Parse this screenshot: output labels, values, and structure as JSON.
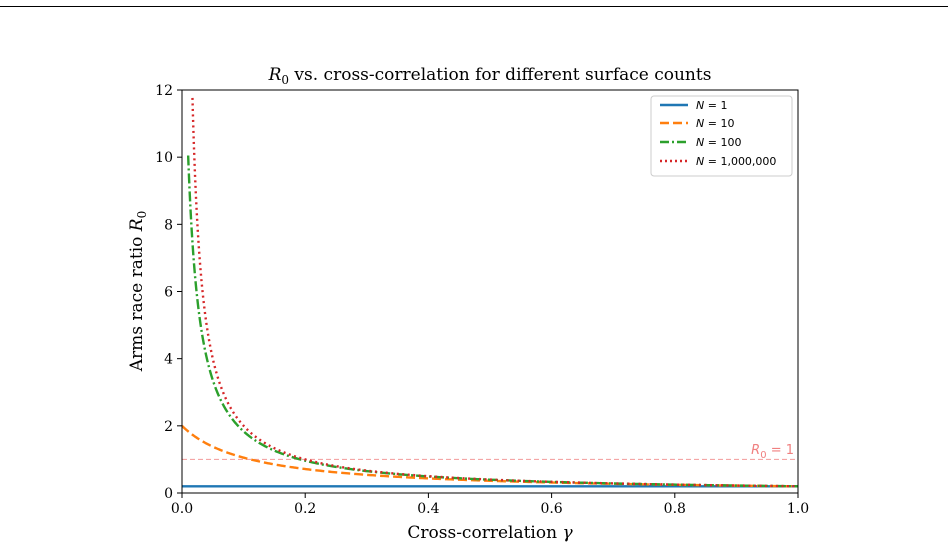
{
  "chart_data": {
    "type": "line",
    "title_var": "R",
    "title_sub": "0",
    "title_rest": " vs. cross-correlation for different surface counts",
    "xlabel": "Cross-correlation ",
    "xlabel_var": "γ",
    "ylabel": "Arms race ratio ",
    "ylabel_var": "R",
    "ylabel_sub": "0",
    "xlim": [
      0.0,
      1.0
    ],
    "ylim": [
      0,
      12
    ],
    "xticks": [
      "0.0",
      "0.2",
      "0.4",
      "0.6",
      "0.8",
      "1.0"
    ],
    "yticks": [
      "0",
      "2",
      "4",
      "6",
      "8",
      "10",
      "12"
    ],
    "grid": false,
    "legend_position": "top-right",
    "reference_line": {
      "y": 1,
      "label_var": "R",
      "label_sub": "0",
      "label_rest": " = 1",
      "color": "#f08080"
    },
    "series": [
      {
        "name_var": "N",
        "name_rest": " = 1",
        "N": 1,
        "color": "#1f77b4",
        "dash": "solid",
        "x": [
          0.0,
          0.2,
          0.4,
          0.6,
          0.8,
          1.0
        ],
        "values": [
          0.2,
          0.2,
          0.2,
          0.2,
          0.2,
          0.2
        ]
      },
      {
        "name_var": "N",
        "name_rest": " = 10",
        "N": 10,
        "color": "#ff7f0e",
        "dash": "dashed",
        "x": [
          0.0,
          0.1,
          0.2,
          0.3,
          0.4,
          0.6,
          0.8,
          1.0
        ],
        "values": [
          2.0,
          1.05,
          0.71,
          0.54,
          0.43,
          0.31,
          0.24,
          0.2
        ]
      },
      {
        "name_var": "N",
        "name_rest": " = 100",
        "N": 100,
        "color": "#2ca02c",
        "dash": "dashdot",
        "x": [
          0.01,
          0.05,
          0.1,
          0.2,
          0.4,
          0.6,
          0.8,
          1.0
        ],
        "values": [
          10.0,
          3.4,
          1.83,
          0.95,
          0.48,
          0.33,
          0.25,
          0.2
        ]
      },
      {
        "name_var": "N",
        "name_rest": " = 1,000,000",
        "N": 1000000,
        "color": "#d62728",
        "dash": "dotted",
        "x": [
          0.017,
          0.05,
          0.1,
          0.2,
          0.4,
          0.6,
          0.8,
          1.0
        ],
        "values": [
          12.0,
          4.0,
          2.0,
          1.0,
          0.5,
          0.33,
          0.25,
          0.2
        ]
      }
    ]
  }
}
